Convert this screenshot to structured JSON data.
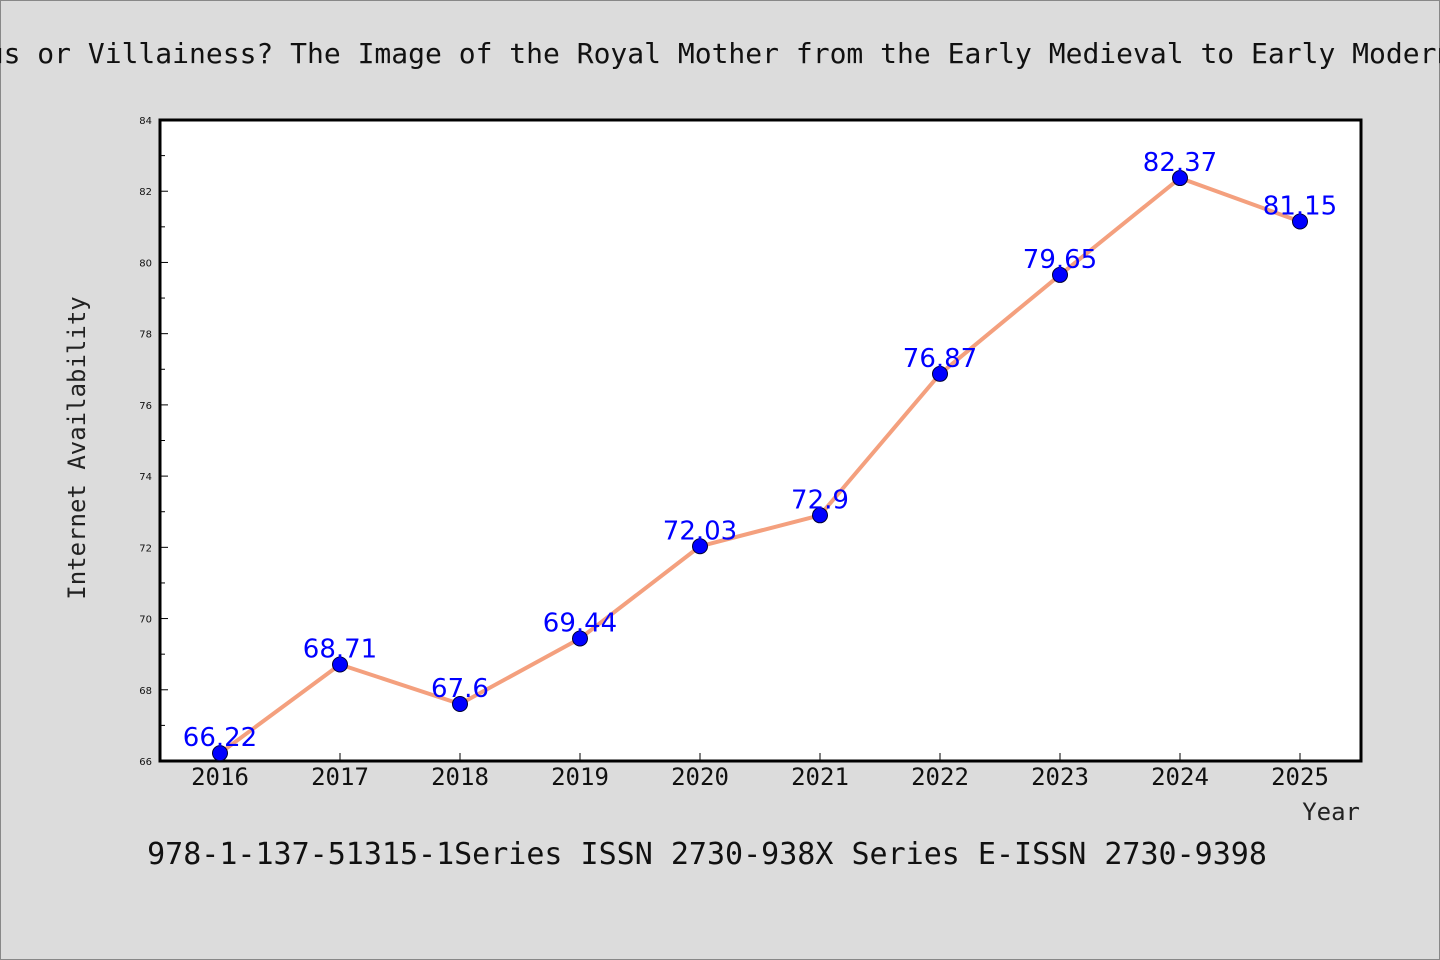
{
  "title": "Virtuous or Villainess? The Image of the Royal Mother from the Early Medieval to Early Modern Times",
  "footer": "978-1-137-51315-1Series ISSN 2730-938X Series E-ISSN 2730-9398",
  "chart_data": {
    "type": "line",
    "title": "Virtuous or Villainess? The Image of the Royal Mother from the Early Medieval to Early Modern Times",
    "xlabel": "Year",
    "ylabel": "Internet Availability",
    "categories": [
      "2016",
      "2017",
      "2018",
      "2019",
      "2020",
      "2021",
      "2022",
      "2023",
      "2024",
      "2025"
    ],
    "values": [
      66.22,
      68.71,
      67.6,
      69.44,
      72.03,
      72.9,
      76.87,
      79.65,
      82.37,
      81.15
    ],
    "data_labels": [
      "66.22",
      "68.71",
      "67.6",
      "69.44",
      "72.03",
      "72.9",
      "76.87",
      "79.65",
      "82.37",
      "81.15"
    ],
    "ylim": [
      66,
      84
    ],
    "yticks": [
      66,
      68,
      70,
      72,
      74,
      76,
      78,
      80,
      82,
      84
    ],
    "ytick_labels": [
      "66",
      "68",
      "70",
      "72",
      "74",
      "76",
      "78",
      "80",
      "82",
      "84"
    ],
    "grid": false,
    "colors": {
      "line": "#f4a07e",
      "marker": "#0000ff",
      "data_label": "#0000ff",
      "background": "#dcdcdc",
      "plot_background": "#ffffff"
    }
  }
}
